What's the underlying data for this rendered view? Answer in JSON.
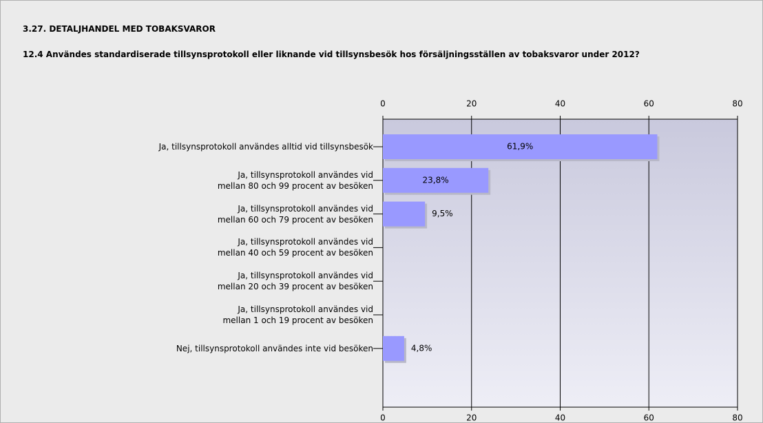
{
  "chart_data": {
    "type": "bar",
    "orientation": "horizontal",
    "section": "3.27. DETALJHANDEL MED TOBAKSVAROR",
    "title": "12.4 Användes standardiserade tillsynsprotokoll eller liknande vid tillsynsbesök hos försäljningsställen av tobaksvaror under 2012?",
    "categories": [
      "Ja, tillsynsprotokoll användes alltid vid tillsynsbesök",
      "Ja, tillsynsprotokoll användes vid\nmellan 80 och 99 procent av besöken",
      "Ja, tillsynsprotokoll användes vid\nmellan 60 och 79 procent av besöken",
      "Ja, tillsynsprotokoll användes vid\nmellan 40 och 59 procent av besöken",
      "Ja, tillsynsprotokoll användes vid\nmellan 20 och 39 procent av besöken",
      "Ja, tillsynsprotokoll användes vid\nmellan 1 och 19 procent av besöken",
      "Nej, tillsynsprotokoll användes inte vid besöken"
    ],
    "values": [
      61.9,
      23.8,
      9.5,
      0,
      0,
      0,
      4.8
    ],
    "value_labels": [
      "61,9%",
      "23,8%",
      "9,5%",
      null,
      null,
      null,
      "4,8%"
    ],
    "color": "#9999ff",
    "xlim": [
      0,
      80
    ],
    "xticks": [
      0,
      20,
      40,
      60,
      80
    ],
    "grid": true
  }
}
